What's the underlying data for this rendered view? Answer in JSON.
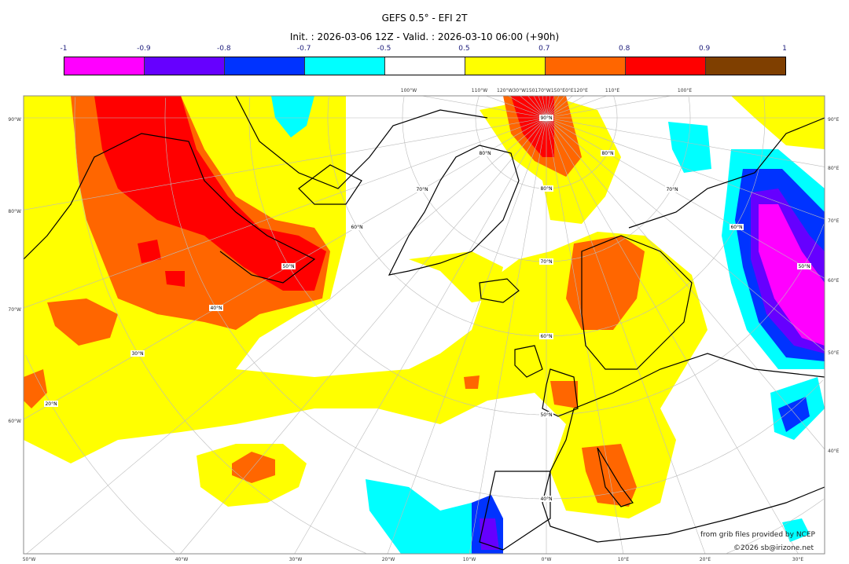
{
  "title": "GEFS 0.5° - EFI 2T",
  "subtitle": "Init. : 2026-03-06 12Z - Valid. : 2026-03-10 06:00 (+90h)",
  "colorbar": {
    "ticks": [
      "-1",
      "-0.9",
      "-0.8",
      "-0.7",
      "-0.5",
      "0.5",
      "0.7",
      "0.8",
      "0.9",
      "1"
    ],
    "colors": [
      "#ff00ff",
      "#6600ff",
      "#0033ff",
      "#00ffff",
      "#ffffff",
      "#ffff00",
      "#ff6600",
      "#ff0000",
      "#7f3f00"
    ]
  },
  "axes": {
    "left": [
      "90°W",
      "80°W",
      "70°W",
      "60°W"
    ],
    "right": [
      "90°E",
      "80°E",
      "70°E",
      "60°E",
      "50°E",
      "40°E"
    ],
    "bottom": [
      "50°W",
      "40°W",
      "30°W",
      "20°W",
      "10°W",
      "0°W",
      "10°E",
      "20°E",
      "30°E"
    ],
    "top": [
      "100°W",
      "110°W",
      "120°W30°W150170°W150°E0°E120°E",
      "110°E",
      "100°E"
    ]
  },
  "lat_labels": [
    "90°N",
    "80°N",
    "80°N",
    "80°N",
    "70°N",
    "70°N",
    "70°N",
    "60°N",
    "60°N",
    "60°N",
    "50°N",
    "50°N",
    "50°N",
    "40°N",
    "40°N",
    "30°N",
    "20°N"
  ],
  "credits": {
    "source": "from grib files provided by NCEP",
    "copyright": "©2026 sb@irizone.net"
  }
}
